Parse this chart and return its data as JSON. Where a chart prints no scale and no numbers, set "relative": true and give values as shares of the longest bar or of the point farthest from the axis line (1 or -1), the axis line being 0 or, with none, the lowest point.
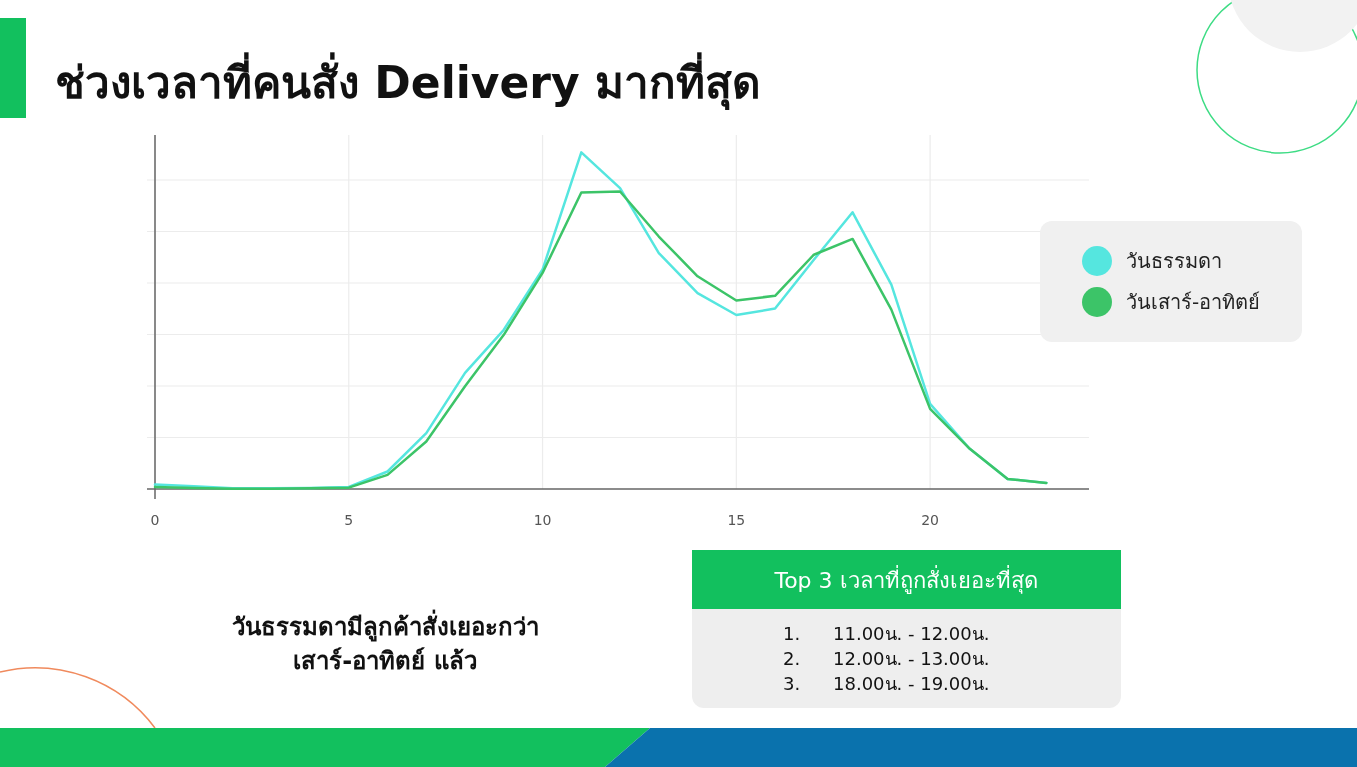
{
  "chart_data": {
    "type": "line",
    "title": "ช่วงเวลาที่คนสั่ง Delivery มากที่สุด",
    "relative": true,
    "x": [
      0,
      1,
      2,
      3,
      4,
      5,
      6,
      7,
      8,
      9,
      10,
      11,
      12,
      13,
      14,
      15,
      16,
      17,
      18,
      19,
      20,
      21,
      22,
      23
    ],
    "xlim": [
      0,
      24.1
    ],
    "xticks": [
      0,
      5,
      10,
      15,
      20
    ],
    "grid": true,
    "legend": "right",
    "marker": "none",
    "line_style": "solid",
    "series": [
      {
        "name": "วันธรรมดา",
        "color": "#55e6df",
        "values": [
          0.013,
          0.008,
          0.002,
          0.002,
          0.003,
          0.006,
          0.052,
          0.166,
          0.345,
          0.473,
          0.652,
          1.0,
          0.894,
          0.701,
          0.582,
          0.517,
          0.536,
          0.681,
          0.822,
          0.607,
          0.253,
          0.122,
          0.03,
          0.018
        ]
      },
      {
        "name": "วันเสาร์-อาทิตย์",
        "color": "#3cc468",
        "values": [
          0.006,
          0.003,
          0.001,
          0.001,
          0.002,
          0.004,
          0.042,
          0.141,
          0.305,
          0.458,
          0.642,
          0.881,
          0.884,
          0.75,
          0.632,
          0.56,
          0.574,
          0.696,
          0.743,
          0.533,
          0.238,
          0.122,
          0.03,
          0.018
        ]
      }
    ],
    "annotations": [
      "วันธรรมดามีลูกค้าสั่งเยอะกว่า เสาร์-อาทิตย์ แล้ว",
      "Top 3 เวลาที่ถูกสั่งเยอะที่สุด",
      "1.",
      "11.00น. - 12.00น.",
      "2.",
      "12.00น. - 13.00น.",
      "3.",
      "18.00น. - 19.00น."
    ]
  }
}
